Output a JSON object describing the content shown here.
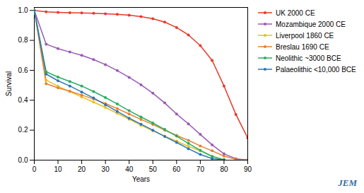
{
  "chart_data": {
    "type": "line",
    "title": "",
    "xlabel": "Years",
    "ylabel": "Survival",
    "xlim": [
      0,
      90
    ],
    "ylim": [
      0,
      1.02
    ],
    "xticks": [
      0,
      10,
      20,
      30,
      40,
      50,
      60,
      70,
      80,
      90
    ],
    "yticks": [
      {
        "value": 0,
        "label": "0.0"
      },
      0.2,
      0.4,
      0.6,
      0.8,
      {
        "value": 1,
        "label": "1.0"
      }
    ],
    "grid": false,
    "legend": "right",
    "marker": "circle",
    "annotations": [
      {
        "text": "JEM",
        "color": "#2e6da4"
      }
    ],
    "series": [
      {
        "name": "UK 2000 CE",
        "color": "#e8392a",
        "x": [
          0,
          5,
          10,
          15,
          20,
          25,
          30,
          35,
          40,
          45,
          50,
          55,
          60,
          65,
          70,
          75,
          80,
          85,
          90
        ],
        "values": [
          1.0,
          0.99,
          0.987,
          0.985,
          0.983,
          0.981,
          0.978,
          0.974,
          0.968,
          0.959,
          0.944,
          0.922,
          0.886,
          0.836,
          0.765,
          0.666,
          0.495,
          0.305,
          0.148
        ]
      },
      {
        "name": "Mozambique 2000 CE",
        "color": "#9b59b6",
        "x": [
          0,
          5,
          10,
          15,
          20,
          25,
          30,
          35,
          40,
          45,
          50,
          55,
          60,
          65,
          70,
          75,
          80,
          85,
          90
        ],
        "values": [
          1.0,
          0.775,
          0.745,
          0.722,
          0.7,
          0.672,
          0.638,
          0.598,
          0.553,
          0.503,
          0.447,
          0.382,
          0.308,
          0.242,
          0.172,
          0.102,
          0.042,
          0.01,
          0.0
        ]
      },
      {
        "name": "Liverpool 1860 CE",
        "color": "#e8c020",
        "x": [
          0,
          5,
          10,
          15,
          20,
          25,
          30,
          35,
          40,
          45,
          50,
          55,
          60,
          65,
          70,
          75,
          80
        ],
        "values": [
          1.0,
          0.535,
          0.493,
          0.458,
          0.422,
          0.387,
          0.352,
          0.313,
          0.273,
          0.233,
          0.196,
          0.161,
          0.127,
          0.092,
          0.062,
          0.026,
          0.003
        ]
      },
      {
        "name": "Breslau 1690 CE",
        "color": "#e88030",
        "x": [
          0,
          5,
          10,
          15,
          20,
          25,
          30,
          35,
          40,
          45,
          50,
          55,
          60,
          65,
          70,
          75,
          80,
          85,
          90
        ],
        "values": [
          1.0,
          0.51,
          0.483,
          0.46,
          0.435,
          0.408,
          0.378,
          0.344,
          0.308,
          0.272,
          0.238,
          0.2,
          0.165,
          0.132,
          0.095,
          0.062,
          0.027,
          0.006,
          0.0
        ]
      },
      {
        "name": "Neolithic ~3000 BCE",
        "color": "#27ae60",
        "x": [
          0,
          5,
          10,
          15,
          20,
          25,
          30,
          35,
          40,
          45,
          50,
          55,
          60,
          65,
          70,
          75,
          80
        ],
        "values": [
          1.0,
          0.59,
          0.555,
          0.525,
          0.495,
          0.458,
          0.418,
          0.375,
          0.33,
          0.288,
          0.248,
          0.205,
          0.16,
          0.112,
          0.065,
          0.025,
          0.003
        ]
      },
      {
        "name": "Palaeolithic <10,000 BCE",
        "color": "#2878b8",
        "x": [
          0,
          5,
          10,
          15,
          20,
          25,
          30,
          35,
          40,
          45,
          50,
          55,
          60,
          65,
          70,
          75,
          80
        ],
        "values": [
          1.0,
          0.575,
          0.53,
          0.495,
          0.455,
          0.415,
          0.37,
          0.325,
          0.28,
          0.24,
          0.2,
          0.158,
          0.118,
          0.076,
          0.038,
          0.011,
          0.001
        ]
      }
    ]
  }
}
